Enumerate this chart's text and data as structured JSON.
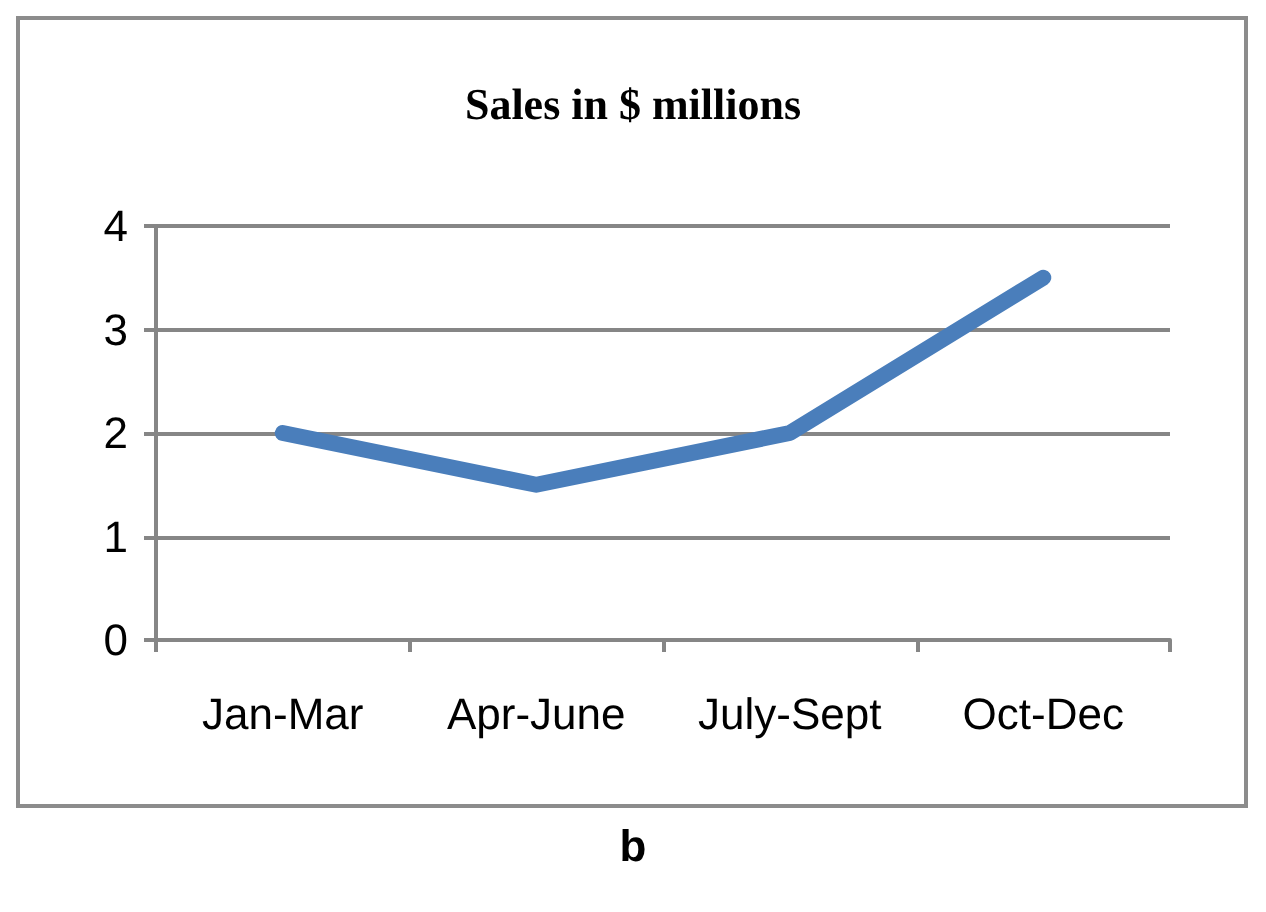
{
  "chart_data": {
    "type": "line",
    "title": "Sales in $ millions",
    "categories": [
      "Jan-Mar",
      "Apr-June",
      "July-Sept",
      "Oct-Dec"
    ],
    "series": [
      {
        "color": "#4a7ebb",
        "values": [
          2,
          1.5,
          2,
          3.5
        ]
      }
    ],
    "ylim": [
      0,
      4
    ],
    "yticks": [
      0,
      1,
      2,
      3,
      4
    ],
    "grid": "y",
    "line_style": "solid",
    "annotations": [
      "b"
    ]
  }
}
